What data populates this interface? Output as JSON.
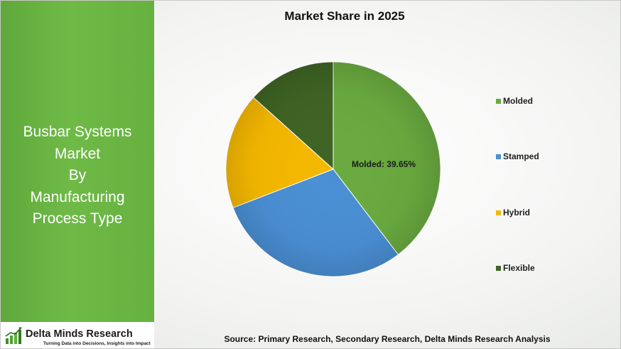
{
  "sidebar": {
    "title_lines": [
      "Busbar Systems",
      "Market",
      "By",
      "Manufacturing",
      "Process Type"
    ]
  },
  "logo": {
    "name": "Delta Minds Research",
    "tagline": "Turning Data into Decisions, Insights into Impact",
    "icon": "bar-chart-growth-icon"
  },
  "source": "Source: Primary Research, Secondary Research, Delta Minds Research Analysis",
  "chart_data": {
    "type": "pie",
    "title": "Market Share in 2025",
    "categories": [
      "Molded",
      "Stamped",
      "Hybrid",
      "Flexible"
    ],
    "values": [
      39.65,
      29.5,
      17.5,
      13.35
    ],
    "colors": [
      "#6aaa3f",
      "#4a8fd4",
      "#f5b800",
      "#3e6424"
    ],
    "data_labels": [
      {
        "category": "Molded",
        "text": "Molded: 39.65%"
      }
    ],
    "legend_position": "right"
  }
}
